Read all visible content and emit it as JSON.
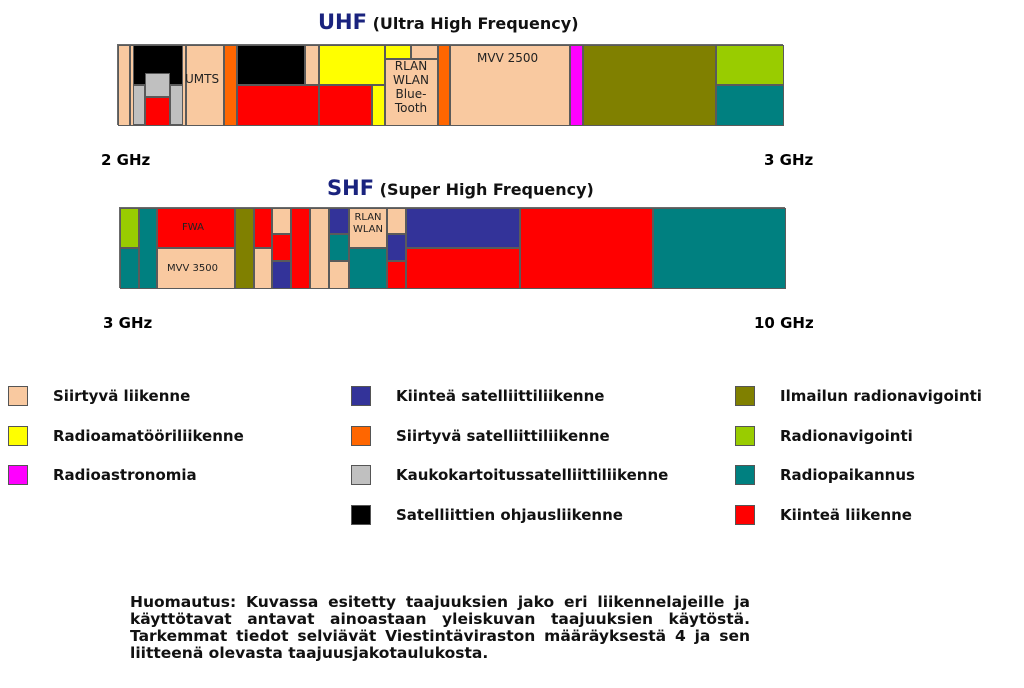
{
  "colors": {
    "siirtyva": "#f9c9a0",
    "amatoori": "#ffff00",
    "astronomia": "#ff00ff",
    "kiintea_satelliitti": "#333399",
    "siirtyva_satelliitti": "#ff6600",
    "kaukokartoitus": "#c0c0c0",
    "ohjaus": "#000000",
    "ilmailu": "#808000",
    "radionavigointi": "#99cc00",
    "radiopaikannus": "#008080",
    "kiintea": "#ff0000"
  },
  "uhf": {
    "title_main": "UHF",
    "title_sub": "(Ultra High Frequency)",
    "start_label": "2 GHz",
    "end_label": "3 GHz",
    "labels": {
      "umts": "UMTS",
      "rlan": "RLAN\nWLAN\nBlue-\nTooth",
      "mvv": "MVV 2500"
    }
  },
  "shf": {
    "title_main": "SHF",
    "title_sub": "(Super High Frequency)",
    "start_label": "3 GHz",
    "end_label": "10 GHz",
    "labels": {
      "fwa": "FWA",
      "mvv": "MVV 3500",
      "rlan": "RLAN\nWLAN"
    }
  },
  "legend": [
    {
      "key": "siirtyva",
      "label": "Siirtyvä liikenne"
    },
    {
      "key": "amatoori",
      "label": "Radioamatööriliikenne"
    },
    {
      "key": "astronomia",
      "label": "Radioastronomia"
    },
    {
      "key": "kiintea_satelliitti",
      "label": "Kiinteä satelliittiliikenne"
    },
    {
      "key": "siirtyva_satelliitti",
      "label": "Siirtyvä satelliittiliikenne"
    },
    {
      "key": "kaukokartoitus",
      "label": "Kaukokartoitussatelliittiliikenne"
    },
    {
      "key": "ohjaus",
      "label": "Satelliittien ohjausliikenne"
    },
    {
      "key": "ilmailu",
      "label": "Ilmailun radionavigointi"
    },
    {
      "key": "radionavigointi",
      "label": "Radionavigointi"
    },
    {
      "key": "radiopaikannus",
      "label": "Radiopaikannus"
    },
    {
      "key": "kiintea",
      "label": "Kiinteä liikenne"
    }
  ],
  "note": "Huomautus: Kuvassa esitetty taajuuksien jako eri liikennelajeille ja käyttötavat antavat ainoastaan yleiskuvan taajuuksien käytöstä. Tarkemmat tiedot selviävät Viestintäviraston määräyksestä 4 ja sen liitteenä olevasta taajuusjakotaulukosta."
}
